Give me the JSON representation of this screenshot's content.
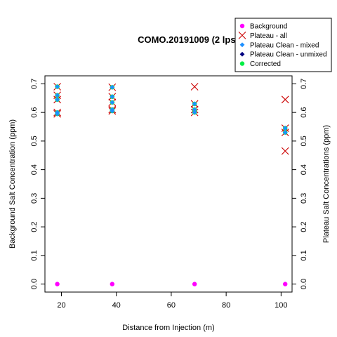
{
  "chart_data": {
    "type": "scatter",
    "title": "COMO.20191009 (2 lps)",
    "xlabel": "Distance from Injection (m)",
    "ylabel": "Background Salt Concentration (ppm)",
    "ylabel_right": "Plateau Salt Concentrations (ppm)",
    "xlim": [
      14,
      104
    ],
    "ylim": [
      -0.028,
      0.728
    ],
    "x_ticks": [
      "20",
      "40",
      "60",
      "80",
      "100"
    ],
    "y_ticks": [
      "0.0",
      "0.1",
      "0.2",
      "0.3",
      "0.4",
      "0.5",
      "0.6",
      "0.7"
    ],
    "legend_position": "top-right",
    "grid": false,
    "series": [
      {
        "name": "Background",
        "marker": "dot",
        "color": "#ff00ff",
        "points": [
          [
            18.5,
            0.0
          ],
          [
            38.5,
            0.0
          ],
          [
            68.5,
            0.0
          ],
          [
            101.5,
            0.0
          ]
        ]
      },
      {
        "name": "Plateau - all",
        "marker": "x",
        "color": "#cc0000",
        "points": [
          [
            18.5,
            0.69
          ],
          [
            18.5,
            0.66
          ],
          [
            18.5,
            0.645
          ],
          [
            18.5,
            0.6
          ],
          [
            18.5,
            0.595
          ],
          [
            38.5,
            0.688
          ],
          [
            38.5,
            0.655
          ],
          [
            38.5,
            0.635
          ],
          [
            38.5,
            0.61
          ],
          [
            38.5,
            0.605
          ],
          [
            68.5,
            0.69
          ],
          [
            68.5,
            0.63
          ],
          [
            68.5,
            0.61
          ],
          [
            68.5,
            0.6
          ],
          [
            101.5,
            0.645
          ],
          [
            101.5,
            0.545
          ],
          [
            101.5,
            0.53
          ],
          [
            101.5,
            0.465
          ]
        ]
      },
      {
        "name": "Plateau Clean - mixed",
        "marker": "diamond",
        "color": "#1e90ff",
        "points": [
          [
            18.5,
            0.69
          ],
          [
            18.5,
            0.66
          ],
          [
            18.5,
            0.645
          ],
          [
            18.5,
            0.6
          ],
          [
            18.5,
            0.595
          ],
          [
            38.5,
            0.688
          ],
          [
            38.5,
            0.655
          ],
          [
            38.5,
            0.635
          ],
          [
            38.5,
            0.61
          ],
          [
            38.5,
            0.605
          ],
          [
            68.5,
            0.63
          ],
          [
            68.5,
            0.61
          ],
          [
            68.5,
            0.6
          ],
          [
            101.5,
            0.545
          ],
          [
            101.5,
            0.53
          ]
        ]
      },
      {
        "name": "Plateau Clean - unmixed",
        "marker": "diamond",
        "color": "#000080",
        "points": []
      },
      {
        "name": "Corrected",
        "marker": "dot",
        "color": "#00ee44",
        "points": [
          [
            18.5,
            0.69
          ],
          [
            18.5,
            0.66
          ],
          [
            18.5,
            0.645
          ],
          [
            18.5,
            0.6
          ],
          [
            18.5,
            0.595
          ],
          [
            38.5,
            0.688
          ],
          [
            38.5,
            0.655
          ],
          [
            38.5,
            0.635
          ],
          [
            38.5,
            0.61
          ],
          [
            38.5,
            0.605
          ],
          [
            68.5,
            0.63
          ],
          [
            68.5,
            0.61
          ],
          [
            68.5,
            0.6
          ],
          [
            101.5,
            0.545
          ],
          [
            101.5,
            0.53
          ]
        ]
      }
    ]
  }
}
